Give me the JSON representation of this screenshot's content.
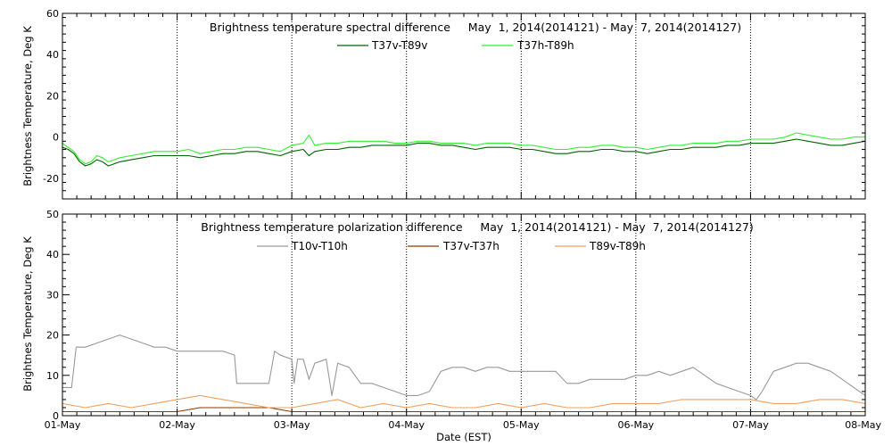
{
  "chart_data": [
    {
      "type": "line",
      "title": "Brightness temperature spectral difference     May  1, 2014(2014121) - May  7, 2014(2014127)",
      "ylabel": "Brightness Temperature, Deg K",
      "xlabel": "",
      "xlim": [
        "2014-05-01",
        "2014-05-08"
      ],
      "ylim": [
        -30,
        60
      ],
      "yticks": [
        -20,
        0,
        20,
        40,
        60
      ],
      "grid": "vertical dotted at day boundaries",
      "legend": "top-center",
      "series": [
        {
          "name": "T37v-T89v",
          "color": "#006400",
          "x": [
            0,
            0.05,
            0.1,
            0.15,
            0.2,
            0.25,
            0.3,
            0.35,
            0.4,
            0.5,
            0.6,
            0.7,
            0.8,
            0.9,
            1.0,
            1.1,
            1.2,
            1.3,
            1.4,
            1.5,
            1.6,
            1.7,
            1.8,
            1.9,
            2.0,
            2.1,
            2.15,
            2.2,
            2.3,
            2.4,
            2.5,
            2.6,
            2.7,
            2.8,
            2.9,
            3.0,
            3.1,
            3.2,
            3.3,
            3.4,
            3.5,
            3.6,
            3.7,
            3.8,
            3.9,
            4.0,
            4.1,
            4.2,
            4.3,
            4.4,
            4.5,
            4.6,
            4.7,
            4.8,
            4.9,
            5.0,
            5.1,
            5.2,
            5.3,
            5.4,
            5.5,
            5.6,
            5.7,
            5.8,
            5.9,
            6.0,
            6.1,
            6.2,
            6.3,
            6.4,
            6.5,
            6.6,
            6.7,
            6.8,
            6.9,
            7.0
          ],
          "values": [
            -5,
            -6,
            -8,
            -12,
            -14,
            -13,
            -11,
            -12,
            -14,
            -12,
            -11,
            -10,
            -9,
            -9,
            -9,
            -9,
            -10,
            -9,
            -8,
            -8,
            -7,
            -7,
            -8,
            -9,
            -7,
            -6,
            -9,
            -7,
            -6,
            -6,
            -5,
            -5,
            -4,
            -4,
            -4,
            -4,
            -3,
            -3,
            -4,
            -4,
            -5,
            -6,
            -5,
            -5,
            -5,
            -6,
            -6,
            -7,
            -8,
            -8,
            -7,
            -7,
            -6,
            -6,
            -7,
            -7,
            -8,
            -7,
            -6,
            -6,
            -5,
            -5,
            -5,
            -4,
            -4,
            -3,
            -3,
            -3,
            -2,
            -1,
            -2,
            -3,
            -4,
            -4,
            -3,
            -2
          ]
        },
        {
          "name": "T37h-T89h",
          "color": "#33ee33",
          "x": [
            0,
            0.05,
            0.1,
            0.15,
            0.2,
            0.25,
            0.3,
            0.35,
            0.4,
            0.5,
            0.6,
            0.7,
            0.8,
            0.9,
            1.0,
            1.1,
            1.2,
            1.3,
            1.4,
            1.5,
            1.6,
            1.7,
            1.8,
            1.9,
            2.0,
            2.1,
            2.15,
            2.2,
            2.3,
            2.4,
            2.5,
            2.6,
            2.7,
            2.8,
            2.9,
            3.0,
            3.1,
            3.2,
            3.3,
            3.4,
            3.5,
            3.6,
            3.7,
            3.8,
            3.9,
            4.0,
            4.1,
            4.2,
            4.3,
            4.4,
            4.5,
            4.6,
            4.7,
            4.8,
            4.9,
            5.0,
            5.1,
            5.2,
            5.3,
            5.4,
            5.5,
            5.6,
            5.7,
            5.8,
            5.9,
            6.0,
            6.1,
            6.2,
            6.3,
            6.4,
            6.5,
            6.6,
            6.7,
            6.8,
            6.9,
            7.0
          ],
          "values": [
            -3,
            -5,
            -7,
            -11,
            -13,
            -12,
            -9,
            -10,
            -12,
            -10,
            -9,
            -8,
            -7,
            -7,
            -7,
            -6,
            -8,
            -7,
            -6,
            -6,
            -5,
            -5,
            -6,
            -7,
            -4,
            -3,
            1,
            -4,
            -3,
            -3,
            -2,
            -2,
            -2,
            -2,
            -3,
            -3,
            -2,
            -2,
            -3,
            -3,
            -3,
            -4,
            -3,
            -3,
            -3,
            -4,
            -4,
            -5,
            -6,
            -6,
            -5,
            -5,
            -4,
            -4,
            -5,
            -5,
            -6,
            -5,
            -4,
            -4,
            -3,
            -3,
            -3,
            -2,
            -2,
            -1,
            -1,
            -1,
            0,
            2,
            1,
            0,
            -1,
            -1,
            0,
            0
          ]
        }
      ]
    },
    {
      "type": "line",
      "title": "Brightness temperature polarization difference     May  1, 2014(2014121) - May  7, 2014(2014127)",
      "ylabel": "Brightnes Temperature, Deg K",
      "xlabel": "Date (EST)",
      "xlim": [
        "2014-05-01",
        "2014-05-08"
      ],
      "ylim": [
        0,
        50
      ],
      "yticks": [
        0,
        10,
        20,
        30,
        40,
        50
      ],
      "xtick_labels": [
        "01-May",
        "02-May",
        "03-May",
        "04-May",
        "05-May",
        "06-May",
        "07-May",
        "08-May"
      ],
      "grid": "vertical dotted at day boundaries",
      "legend": "top-center",
      "series": [
        {
          "name": "T10v-T10h",
          "color": "#999999",
          "x": [
            0,
            0.08,
            0.12,
            0.2,
            0.3,
            0.4,
            0.5,
            0.6,
            0.7,
            0.8,
            0.9,
            1.0,
            1.1,
            1.2,
            1.3,
            1.4,
            1.5,
            1.52,
            1.6,
            1.8,
            1.85,
            1.9,
            2.0,
            2.02,
            2.05,
            2.1,
            2.15,
            2.2,
            2.3,
            2.35,
            2.4,
            2.5,
            2.6,
            2.7,
            2.8,
            2.9,
            3.0,
            3.1,
            3.2,
            3.3,
            3.4,
            3.5,
            3.6,
            3.7,
            3.8,
            3.9,
            4.0,
            4.1,
            4.2,
            4.3,
            4.4,
            4.5,
            4.6,
            4.7,
            4.8,
            4.9,
            5.0,
            5.1,
            5.2,
            5.3,
            5.4,
            5.5,
            5.6,
            5.7,
            5.8,
            5.9,
            6.0,
            6.05,
            6.1,
            6.2,
            6.3,
            6.4,
            6.5,
            6.6,
            6.7,
            6.8,
            6.9,
            7.0
          ],
          "values": [
            7,
            7,
            17,
            17,
            18,
            19,
            20,
            19,
            18,
            17,
            17,
            16,
            16,
            16,
            16,
            16,
            15,
            8,
            8,
            8,
            16,
            15,
            14,
            8,
            14,
            14,
            9,
            13,
            14,
            5,
            13,
            12,
            8,
            8,
            7,
            6,
            5,
            5,
            6,
            11,
            12,
            12,
            11,
            12,
            12,
            11,
            11,
            11,
            11,
            11,
            8,
            8,
            9,
            9,
            9,
            9,
            10,
            10,
            11,
            10,
            11,
            12,
            10,
            8,
            7,
            6,
            5,
            4,
            6,
            11,
            12,
            13,
            13,
            12,
            11,
            9,
            7,
            5
          ]
        },
        {
          "name": "T37v-T37h",
          "color": "#8b3a00",
          "x": [
            0,
            0.2,
            0.4,
            0.6,
            0.8,
            1.0,
            1.2,
            1.4,
            1.6,
            1.8,
            2.0,
            2.2,
            2.4,
            2.6,
            2.8,
            3.0,
            3.2,
            3.4,
            3.6,
            3.8,
            4.0,
            4.2,
            4.4,
            4.6,
            4.8,
            5.0,
            5.2,
            5.4,
            5.6,
            5.8,
            6.0,
            6.2,
            6.4,
            6.6,
            6.8,
            7.0
          ],
          "values": [
            1,
            1,
            1,
            1,
            1,
            1,
            2,
            2,
            2,
            2,
            1,
            1,
            1,
            1,
            1,
            1,
            1,
            1,
            1,
            1,
            1,
            1,
            1,
            1,
            1,
            1,
            1,
            1,
            1,
            1,
            1,
            1,
            1,
            1,
            1,
            1
          ]
        },
        {
          "name": "T89v-T89h",
          "color": "#f0a060",
          "x": [
            0,
            0.2,
            0.4,
            0.6,
            0.8,
            1.0,
            1.2,
            1.4,
            1.6,
            1.8,
            2.0,
            2.2,
            2.4,
            2.6,
            2.8,
            3.0,
            3.2,
            3.4,
            3.6,
            3.8,
            4.0,
            4.2,
            4.4,
            4.6,
            4.8,
            5.0,
            5.2,
            5.4,
            5.6,
            5.8,
            6.0,
            6.2,
            6.4,
            6.6,
            6.8,
            7.0
          ],
          "values": [
            3,
            2,
            3,
            2,
            3,
            4,
            5,
            4,
            3,
            2,
            2,
            3,
            4,
            2,
            3,
            2,
            3,
            2,
            2,
            3,
            2,
            3,
            2,
            2,
            3,
            3,
            3,
            4,
            4,
            4,
            4,
            3,
            3,
            4,
            4,
            3
          ]
        }
      ]
    }
  ]
}
